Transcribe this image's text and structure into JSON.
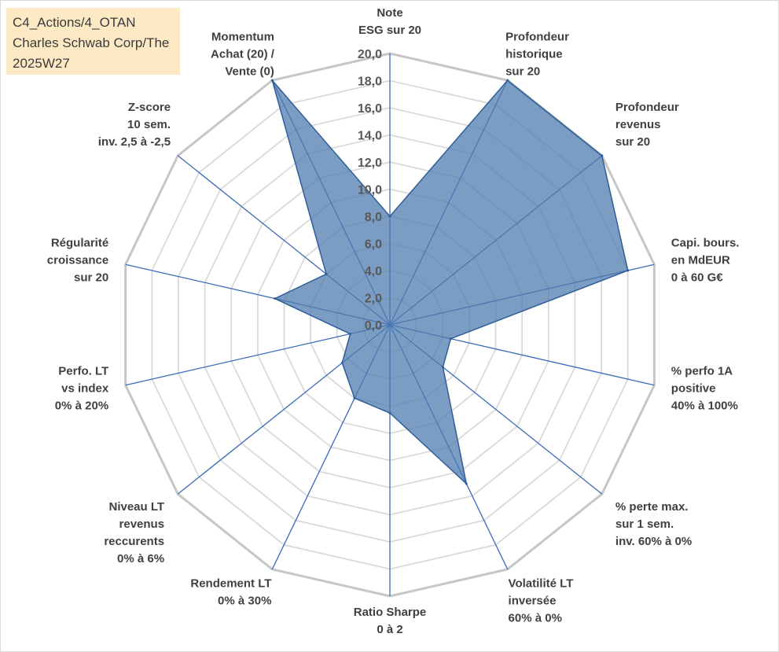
{
  "header": {
    "line1": "C4_Actions/4_OTAN",
    "line2": "Charles Schwab Corp/The",
    "line3": "2025W27"
  },
  "chart_data": {
    "type": "radar",
    "title": "",
    "rlim": [
      0,
      20
    ],
    "tick_values": [
      0,
      2,
      4,
      6,
      8,
      10,
      12,
      14,
      16,
      18,
      20
    ],
    "tick_labels": [
      "0,0",
      "2,0",
      "4,0",
      "6,0",
      "8,0",
      "10,0",
      "12,0",
      "14,0",
      "16,0",
      "18,0",
      "20,0"
    ],
    "axes": [
      {
        "label": [
          "Note",
          "ESG sur 20"
        ]
      },
      {
        "label": [
          "Profondeur",
          "historique",
          "sur 20"
        ]
      },
      {
        "label": [
          "Profondeur",
          "revenus",
          "sur 20"
        ]
      },
      {
        "label": [
          "Capi. bours.",
          "en MdEUR",
          "0 à 60 G€"
        ]
      },
      {
        "label": [
          "% perfo 1A",
          "positive",
          "40% à 100%"
        ]
      },
      {
        "label": [
          "% perte max.",
          "sur 1 sem.",
          "inv. 60% à 0%"
        ]
      },
      {
        "label": [
          "Volatilité LT",
          "inversée",
          "60% à 0%"
        ]
      },
      {
        "label": [
          "Ratio Sharpe",
          "0 à 2"
        ]
      },
      {
        "label": [
          "Rendement LT",
          "0% à 30%"
        ]
      },
      {
        "label": [
          "Niveau LT",
          "revenus",
          "reccurents",
          "0% à 6%"
        ]
      },
      {
        "label": [
          "Perfo. LT",
          "vs index",
          "0% à 20%"
        ]
      },
      {
        "label": [
          "Régularité",
          "croissance",
          "sur 20"
        ]
      },
      {
        "label": [
          "Z-score",
          "10 sem.",
          "inv. 2,5 à -2,5"
        ]
      },
      {
        "label": [
          "Momentum",
          "Achat (20) /",
          "Vente (0)"
        ]
      }
    ],
    "series": [
      {
        "values": [
          8.0,
          20.0,
          20.0,
          18.0,
          4.6,
          5.0,
          13.0,
          6.5,
          6.0,
          4.5,
          3.0,
          8.7,
          6.0,
          20.0
        ]
      }
    ],
    "colors": {
      "fill": "#4f7cb0",
      "fill_opacity": 0.75,
      "stroke": "#2e5e99",
      "spoke": "#3a6ab8",
      "grid_outer": "#c6c6c6",
      "grid_inner": "#d9d9d9"
    },
    "grid": true,
    "legend": "none"
  }
}
